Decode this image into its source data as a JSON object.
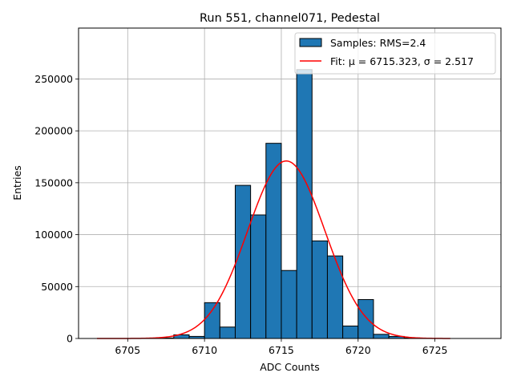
{
  "chart_data": {
    "type": "bar",
    "title": "Run 551, channel071, Pedestal",
    "xlabel": "ADC Counts",
    "ylabel": "Entries",
    "xlim": [
      6701.8,
      6729.3
    ],
    "ylim": [
      0,
      299000
    ],
    "xticks": [
      6705,
      6710,
      6715,
      6720,
      6725
    ],
    "yticks": [
      0,
      50000,
      100000,
      150000,
      200000,
      250000
    ],
    "grid": true,
    "legend_position": "top-right",
    "series": [
      {
        "name": "Samples: RMS=2.4",
        "kind": "histogram",
        "color": "#1f77b4",
        "bin_width": 1,
        "bins": [
          {
            "left": 6707,
            "value": 500
          },
          {
            "left": 6708,
            "value": 3500
          },
          {
            "left": 6709,
            "value": 2000
          },
          {
            "left": 6710,
            "value": 34500
          },
          {
            "left": 6711,
            "value": 11000
          },
          {
            "left": 6712,
            "value": 147500
          },
          {
            "left": 6713,
            "value": 119000
          },
          {
            "left": 6714,
            "value": 188000
          },
          {
            "left": 6715,
            "value": 65500
          },
          {
            "left": 6716,
            "value": 259000
          },
          {
            "left": 6717,
            "value": 94000
          },
          {
            "left": 6718,
            "value": 79500
          },
          {
            "left": 6719,
            "value": 12000
          },
          {
            "left": 6720,
            "value": 37500
          },
          {
            "left": 6721,
            "value": 4000
          },
          {
            "left": 6722,
            "value": 2000
          },
          {
            "left": 6723,
            "value": 500
          }
        ]
      },
      {
        "name": "Fit: μ = 6715.323, σ = 2.517",
        "kind": "gaussian-fit",
        "color": "#ff0000",
        "mu": 6715.323,
        "sigma": 2.517,
        "amplitude": 171000,
        "x_range": [
          6703,
          6726
        ]
      }
    ]
  }
}
